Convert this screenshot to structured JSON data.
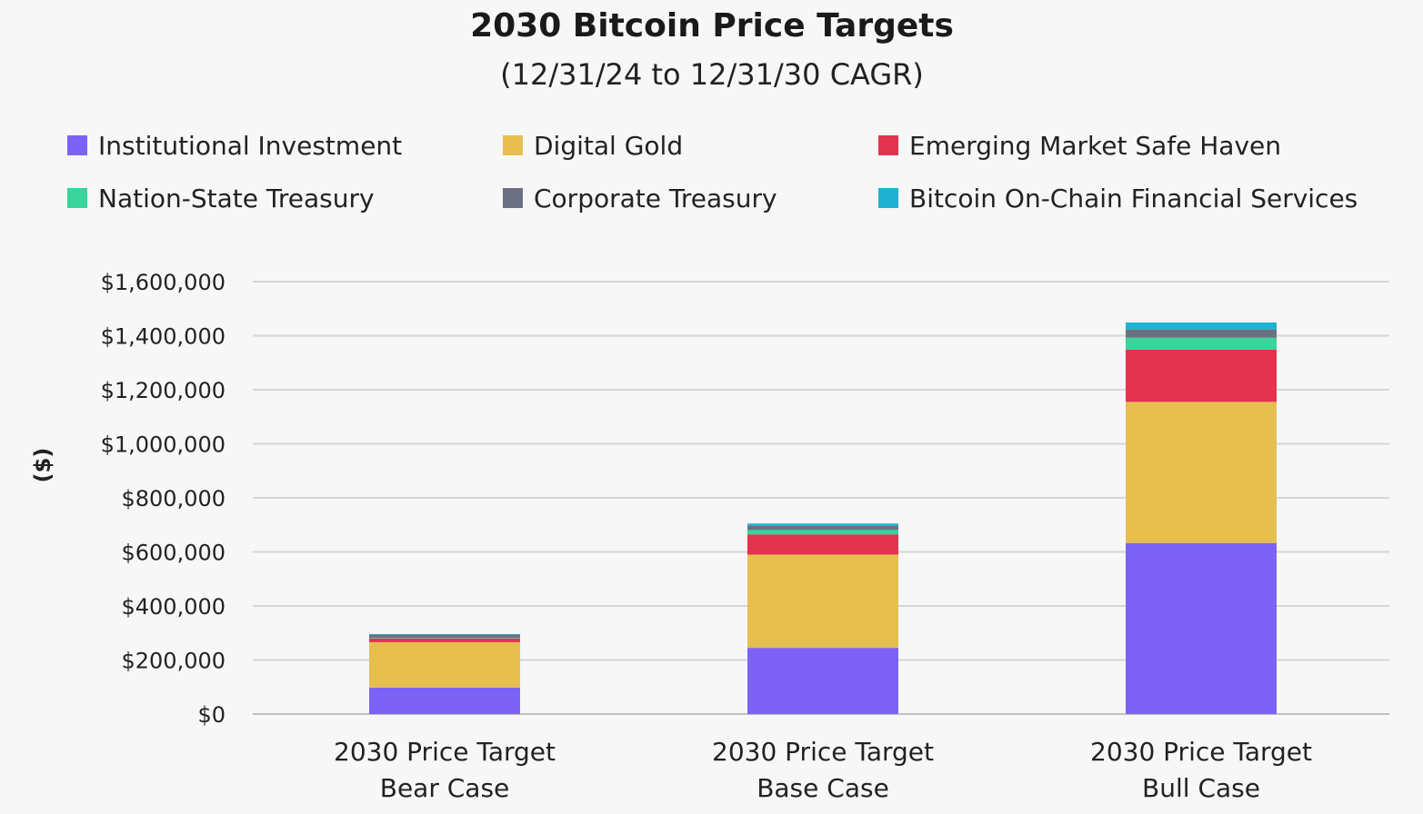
{
  "chart_data": {
    "type": "bar",
    "stacked": true,
    "title": "2030 Bitcoin Price Targets",
    "subtitle": "(12/31/24 to 12/31/30 CAGR)",
    "ylabel": "($)",
    "xlabel": "",
    "ylim": [
      0,
      1600000
    ],
    "yticks": [
      0,
      200000,
      400000,
      600000,
      800000,
      1000000,
      1200000,
      1400000,
      1600000
    ],
    "ytick_labels": [
      "$0",
      "$200,000",
      "$400,000",
      "$600,000",
      "$800,000",
      "$1,000,000",
      "$1,200,000",
      "$1,400,000",
      "$1,600,000"
    ],
    "grid": true,
    "legend_position": "top",
    "categories": [
      [
        "2030 Price Target",
        "Bear Case"
      ],
      [
        "2030 Price Target",
        "Base Case"
      ],
      [
        "2030 Price Target",
        "Bull Case"
      ]
    ],
    "series": [
      {
        "name": "Institutional Investment",
        "color": "#7d63f5",
        "values": [
          98000,
          245000,
          633000
        ]
      },
      {
        "name": "Digital Gold",
        "color": "#e6bf4f",
        "values": [
          168000,
          345000,
          522000
        ]
      },
      {
        "name": "Emerging Market Safe Haven",
        "color": "#e2334f",
        "values": [
          14000,
          75000,
          193000
        ]
      },
      {
        "name": "Nation-State Treasury",
        "color": "#39d49b",
        "values": [
          2000,
          16000,
          45000
        ]
      },
      {
        "name": "Corporate Treasury",
        "color": "#6b7180",
        "values": [
          12000,
          16000,
          30000
        ]
      },
      {
        "name": "Bitcoin On-Chain Financial Services",
        "color": "#1fb3d0",
        "values": [
          2000,
          8000,
          26000
        ]
      }
    ]
  }
}
